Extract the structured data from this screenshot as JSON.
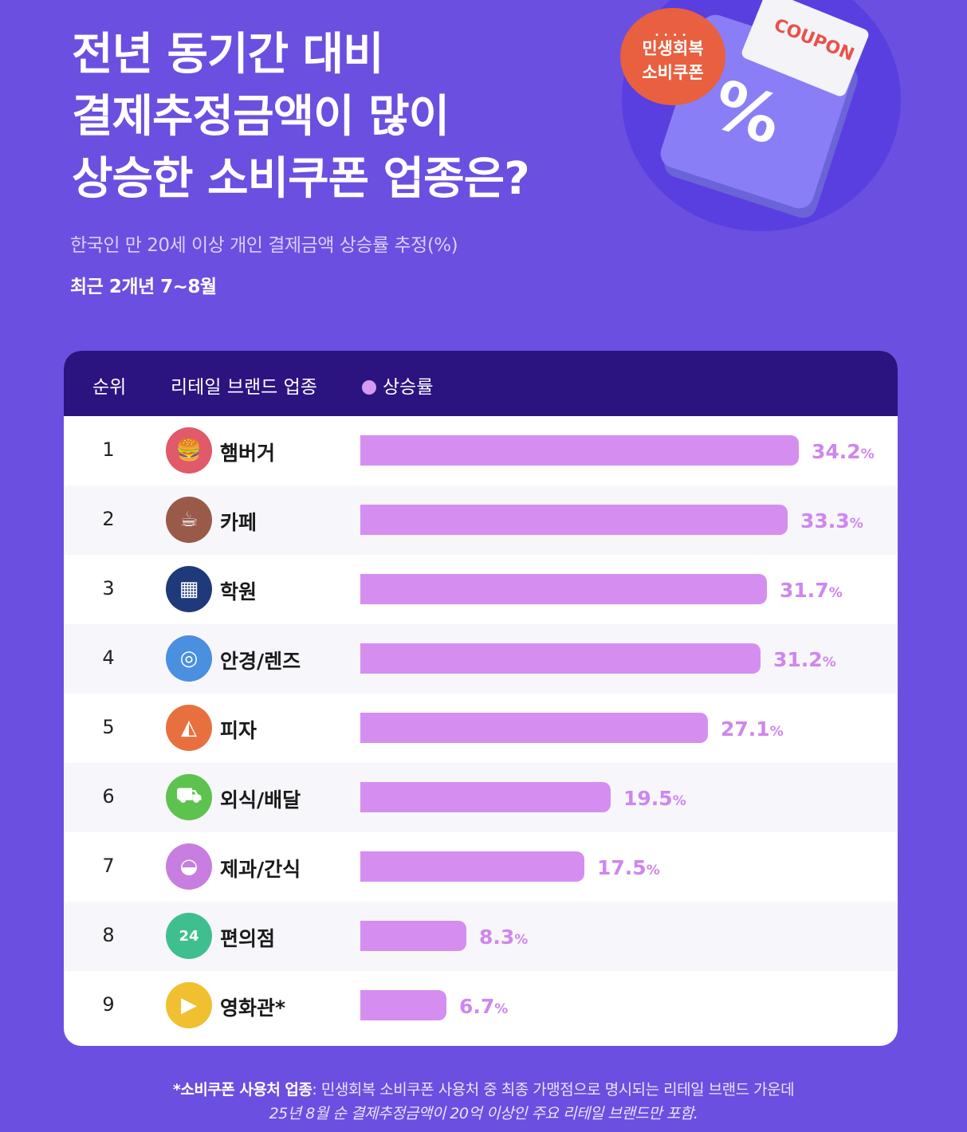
{
  "header": {
    "title_lines": [
      "전년 동기간 대비",
      "결제추정금액이 많이",
      "상승한 소비쿠폰 업종은?"
    ],
    "subtitle": "한국인 만 20세 이상 개인 결제금액 상승률 추정(%)",
    "period": "최근 2개년 7~8월"
  },
  "badge": {
    "line1": "민생회복",
    "line2": "소비쿠폰"
  },
  "coupon": {
    "word": "COUPON",
    "symbol": "%"
  },
  "table": {
    "col_rank": "순위",
    "col_category": "리테일 브랜드 업종",
    "col_rate": "상승률"
  },
  "chart_data": {
    "type": "bar",
    "orientation": "horizontal",
    "ranks": [
      "1",
      "2",
      "3",
      "4",
      "5",
      "6",
      "7",
      "8",
      "9"
    ],
    "categories": [
      "햄버거",
      "카페",
      "학원",
      "안경/렌즈",
      "피자",
      "외식/배달",
      "제과/간식",
      "편의점",
      "영화관*"
    ],
    "values": [
      34.2,
      33.3,
      31.7,
      31.2,
      27.1,
      19.5,
      17.5,
      8.3,
      6.7
    ],
    "value_labels": [
      "34.2",
      "33.3",
      "31.7",
      "31.2",
      "27.1",
      "19.5",
      "17.5",
      "8.3",
      "6.7"
    ],
    "unit": "%",
    "legend": "상승률",
    "bar_color": "#d58ef0",
    "icons": [
      {
        "name": "burger-icon",
        "color": "#e05a6a",
        "glyph": "🍔"
      },
      {
        "name": "coffee-cup-icon",
        "color": "#9a5a4a",
        "glyph": "☕"
      },
      {
        "name": "calculator-icon",
        "color": "#1f3a7a",
        "glyph": "▦"
      },
      {
        "name": "glasses-icon",
        "color": "#4a8fe0",
        "glyph": "◎"
      },
      {
        "name": "pizza-icon",
        "color": "#e8703f",
        "glyph": "◭"
      },
      {
        "name": "delivery-scooter-icon",
        "color": "#5ec24e",
        "glyph": "⛟"
      },
      {
        "name": "cake-icon",
        "color": "#c77ee0",
        "glyph": "◒"
      },
      {
        "name": "convenience-store-icon",
        "color": "#3fbf8f",
        "glyph": "24"
      },
      {
        "name": "movie-clapper-icon",
        "color": "#f0c030",
        "glyph": "▶"
      }
    ]
  },
  "footnote": {
    "bold": "*소비쿠폰 사용처 업종",
    "line1": ": 민생회복 소비쿠폰 사용처 중 최종 가맹점으로 명시되는 리테일 브랜드 가운데",
    "line2": "25년 8월 순 결제추정금액이 20억 이상인 주요 리테일 브랜드만 포함."
  },
  "colors": {
    "background": "#6b4fe0",
    "table_header": "#2b1480",
    "badge": "#e8603f",
    "value_text": "#cf86ee"
  }
}
